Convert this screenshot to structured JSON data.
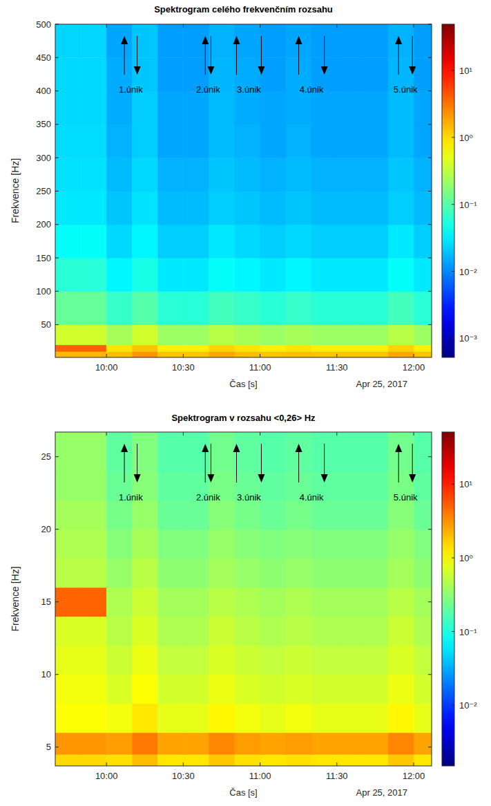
{
  "chart_data": [
    {
      "type": "heatmap",
      "title": "Spektrogram celého frekvenčním rozsahu",
      "x_label": "Čas [s]",
      "y_label": "Frekvence [Hz]",
      "date_label": "Apr 25, 2017",
      "xlim": [
        580,
        727
      ],
      "xticks": [
        {
          "value": 600,
          "label": "10:00"
        },
        {
          "value": 630,
          "label": "10:30"
        },
        {
          "value": 660,
          "label": "11:00"
        },
        {
          "value": 690,
          "label": "11:30"
        },
        {
          "value": 720,
          "label": "12:00"
        }
      ],
      "ylim": [
        1,
        500
      ],
      "yticks": [
        50,
        100,
        150,
        200,
        250,
        300,
        350,
        400,
        450,
        500
      ],
      "x": [
        580,
        590,
        600,
        610,
        620,
        630,
        640,
        650,
        660,
        670,
        680,
        690,
        700,
        710,
        720,
        727
      ],
      "y": [
        1,
        10,
        20,
        50,
        100,
        150,
        200,
        250,
        300,
        350,
        400,
        450,
        500
      ],
      "values": [
        [
          1.5,
          1.5,
          1.4,
          2.2,
          1.3,
          1.3,
          1.8,
          1.4,
          1.3,
          1.4,
          1.3,
          1.3,
          1.3,
          1.8,
          1.3
        ],
        [
          4,
          4,
          0.9,
          1.3,
          0.8,
          0.8,
          1.1,
          0.9,
          0.8,
          0.9,
          0.8,
          0.8,
          0.8,
          1.1,
          0.8
        ],
        [
          0.4,
          0.4,
          0.25,
          0.4,
          0.22,
          0.22,
          0.3,
          0.25,
          0.22,
          0.25,
          0.22,
          0.22,
          0.22,
          0.3,
          0.22
        ],
        [
          0.12,
          0.12,
          0.07,
          0.1,
          0.06,
          0.06,
          0.08,
          0.07,
          0.06,
          0.07,
          0.06,
          0.06,
          0.06,
          0.08,
          0.06
        ],
        [
          0.06,
          0.06,
          0.035,
          0.05,
          0.03,
          0.03,
          0.04,
          0.035,
          0.03,
          0.035,
          0.03,
          0.03,
          0.03,
          0.04,
          0.03
        ],
        [
          0.04,
          0.04,
          0.025,
          0.035,
          0.022,
          0.022,
          0.03,
          0.025,
          0.022,
          0.025,
          0.022,
          0.022,
          0.022,
          0.03,
          0.022
        ],
        [
          0.03,
          0.03,
          0.02,
          0.028,
          0.018,
          0.018,
          0.022,
          0.02,
          0.018,
          0.02,
          0.018,
          0.018,
          0.018,
          0.022,
          0.018
        ],
        [
          0.028,
          0.028,
          0.018,
          0.025,
          0.016,
          0.016,
          0.02,
          0.018,
          0.016,
          0.018,
          0.016,
          0.016,
          0.016,
          0.02,
          0.016
        ],
        [
          0.026,
          0.026,
          0.016,
          0.022,
          0.014,
          0.014,
          0.018,
          0.016,
          0.014,
          0.016,
          0.014,
          0.014,
          0.014,
          0.018,
          0.014
        ],
        [
          0.025,
          0.025,
          0.015,
          0.022,
          0.014,
          0.014,
          0.018,
          0.015,
          0.014,
          0.015,
          0.014,
          0.014,
          0.014,
          0.018,
          0.014
        ],
        [
          0.025,
          0.025,
          0.015,
          0.02,
          0.013,
          0.013,
          0.017,
          0.015,
          0.013,
          0.015,
          0.013,
          0.013,
          0.013,
          0.017,
          0.013
        ],
        [
          0.024,
          0.024,
          0.014,
          0.02,
          0.013,
          0.013,
          0.016,
          0.014,
          0.013,
          0.014,
          0.013,
          0.013,
          0.013,
          0.016,
          0.013
        ]
      ],
      "colorbar": {
        "lim": [
          0.00052,
          49
        ],
        "log": true,
        "ticks": [
          {
            "value": 0.001,
            "label": "10⁻³"
          },
          {
            "value": 0.01,
            "label": "10⁻²"
          },
          {
            "value": 0.1,
            "label": "10⁻¹"
          },
          {
            "value": 1,
            "label": "10⁰"
          },
          {
            "value": 10,
            "label": "10¹"
          }
        ]
      },
      "annotations": [
        {
          "text": "1.únik",
          "start": 607,
          "end": 612
        },
        {
          "text": "2.únik",
          "start": 638.6,
          "end": 640.8
        },
        {
          "text": "3.únik",
          "start": 650.8,
          "end": 660.5
        },
        {
          "text": "4.únik",
          "start": 675.1,
          "end": 685.1
        },
        {
          "text": "5.únik",
          "start": 714.1,
          "end": 719.5
        }
      ]
    },
    {
      "type": "heatmap",
      "title": "Spektrogram v rozsahu <0,26> Hz",
      "x_label": "Čas [s]",
      "y_label": "Frekvence [Hz]",
      "date_label": "Apr 25, 2017",
      "xlim": [
        580,
        727
      ],
      "xticks": [
        {
          "value": 600,
          "label": "10:00"
        },
        {
          "value": 630,
          "label": "10:30"
        },
        {
          "value": 660,
          "label": "11:00"
        },
        {
          "value": 690,
          "label": "11:30"
        },
        {
          "value": 720,
          "label": "12:00"
        }
      ],
      "ylim": [
        3.7,
        26.7
      ],
      "yticks": [
        5,
        10,
        15,
        20,
        25
      ],
      "x": [
        580,
        590,
        600,
        610,
        620,
        630,
        640,
        650,
        660,
        670,
        680,
        690,
        700,
        710,
        720,
        727
      ],
      "y": [
        3.7,
        4.5,
        6,
        8,
        10,
        12,
        14,
        16,
        18,
        20,
        22,
        24,
        26.7
      ],
      "values": [
        [
          1.5,
          1.5,
          1.4,
          2,
          1.3,
          1.3,
          1.8,
          1.4,
          1.3,
          1.4,
          1.3,
          1.3,
          1.3,
          1.8,
          1.3
        ],
        [
          3,
          3,
          2.8,
          4,
          2.6,
          2.6,
          3.5,
          2.8,
          2.6,
          2.8,
          2.6,
          2.6,
          2.6,
          3.5,
          2.6
        ],
        [
          1,
          1,
          0.9,
          1.3,
          0.8,
          0.8,
          1.1,
          0.9,
          0.8,
          0.9,
          0.8,
          0.8,
          0.8,
          1.1,
          0.8
        ],
        [
          0.9,
          0.9,
          0.7,
          1,
          0.65,
          0.65,
          0.85,
          0.7,
          0.65,
          0.7,
          0.65,
          0.65,
          0.65,
          0.85,
          0.65
        ],
        [
          0.8,
          0.8,
          0.6,
          0.85,
          0.55,
          0.55,
          0.7,
          0.6,
          0.55,
          0.6,
          0.55,
          0.55,
          0.55,
          0.7,
          0.55
        ],
        [
          0.7,
          0.7,
          0.5,
          0.7,
          0.45,
          0.45,
          0.6,
          0.5,
          0.45,
          0.5,
          0.45,
          0.45,
          0.45,
          0.6,
          0.45
        ],
        [
          5,
          5,
          0.45,
          0.6,
          0.4,
          0.4,
          0.5,
          0.45,
          0.4,
          0.45,
          0.4,
          0.4,
          0.4,
          0.5,
          0.4
        ],
        [
          0.5,
          0.5,
          0.35,
          0.5,
          0.32,
          0.32,
          0.4,
          0.35,
          0.32,
          0.35,
          0.32,
          0.32,
          0.32,
          0.4,
          0.32
        ],
        [
          0.45,
          0.45,
          0.3,
          0.42,
          0.28,
          0.28,
          0.35,
          0.3,
          0.28,
          0.3,
          0.28,
          0.28,
          0.28,
          0.35,
          0.28
        ],
        [
          0.4,
          0.4,
          0.25,
          0.35,
          0.22,
          0.22,
          0.3,
          0.25,
          0.22,
          0.25,
          0.22,
          0.22,
          0.22,
          0.3,
          0.22
        ],
        [
          0.35,
          0.35,
          0.22,
          0.3,
          0.2,
          0.2,
          0.26,
          0.22,
          0.2,
          0.22,
          0.2,
          0.2,
          0.2,
          0.26,
          0.2
        ],
        [
          0.35,
          0.35,
          0.2,
          0.28,
          0.18,
          0.18,
          0.24,
          0.2,
          0.18,
          0.2,
          0.18,
          0.18,
          0.18,
          0.24,
          0.18
        ]
      ],
      "colorbar": {
        "lim": [
          0.0015,
          51
        ],
        "log": true,
        "ticks": [
          {
            "value": 0.01,
            "label": "10⁻²"
          },
          {
            "value": 0.1,
            "label": "10⁻¹"
          },
          {
            "value": 1,
            "label": "10⁰"
          },
          {
            "value": 10,
            "label": "10¹"
          }
        ]
      },
      "annotations": [
        {
          "text": "1.únik",
          "start": 607,
          "end": 612
        },
        {
          "text": "2.únik",
          "start": 638.6,
          "end": 640.8
        },
        {
          "text": "3.únik",
          "start": 650.8,
          "end": 660.5
        },
        {
          "text": "4.únik",
          "start": 675.1,
          "end": 685.1
        },
        {
          "text": "5.únik",
          "start": 714.1,
          "end": 719.5
        }
      ]
    }
  ]
}
